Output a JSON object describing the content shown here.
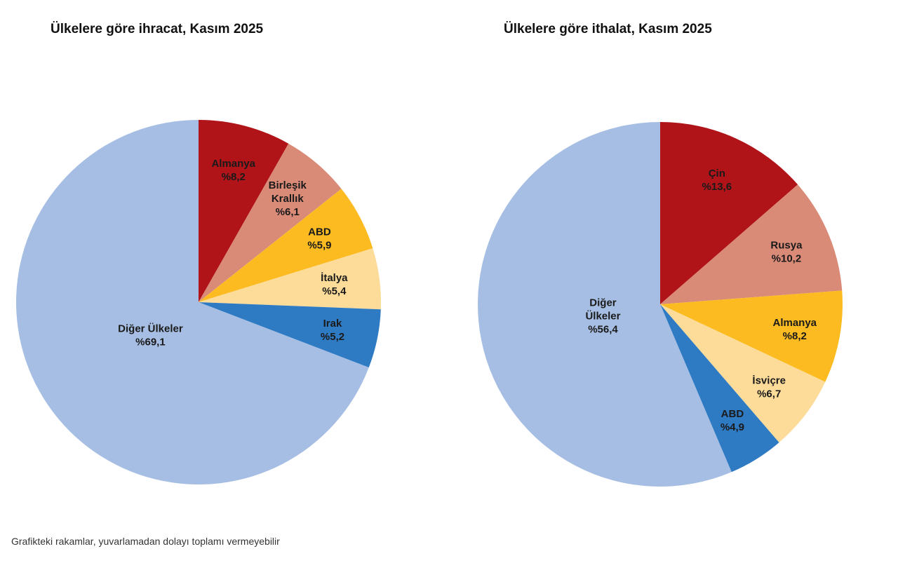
{
  "chart_data": [
    {
      "type": "pie",
      "title": "Ülkelere göre ihracat, Kasım 2025",
      "start": "12 o'clock, clockwise",
      "slices": [
        {
          "label": [
            "Almanya"
          ],
          "value": 8.2,
          "value_label": "%8,2",
          "color": "#B01419"
        },
        {
          "label": [
            "Birleşik",
            "Krallık"
          ],
          "value": 6.1,
          "value_label": "%6,1",
          "color": "#D98B78"
        },
        {
          "label": [
            "ABD"
          ],
          "value": 5.9,
          "value_label": "%5,9",
          "color": "#FBBB21"
        },
        {
          "label": [
            "İtalya"
          ],
          "value": 5.4,
          "value_label": "%5,4",
          "color": "#FDDC9A"
        },
        {
          "label": [
            "Irak"
          ],
          "value": 5.2,
          "value_label": "%5,2",
          "color": "#2E7BC4"
        },
        {
          "label": [
            "Diğer Ülkeler"
          ],
          "value": 69.1,
          "value_label": "%69,1",
          "color": "#A6BEE3"
        }
      ]
    },
    {
      "type": "pie",
      "title": "Ülkelere göre ithalat, Kasım 2025",
      "start": "12 o'clock, clockwise",
      "slices": [
        {
          "label": [
            "Çin"
          ],
          "value": 13.6,
          "value_label": "%13,6",
          "color": "#B01419"
        },
        {
          "label": [
            "Rusya"
          ],
          "value": 10.2,
          "value_label": "%10,2",
          "color": "#D98B78"
        },
        {
          "label": [
            "Almanya"
          ],
          "value": 8.2,
          "value_label": "%8,2",
          "color": "#FBBB21"
        },
        {
          "label": [
            "İsviçre"
          ],
          "value": 6.7,
          "value_label": "%6,7",
          "color": "#FDDC9A"
        },
        {
          "label": [
            "ABD"
          ],
          "value": 4.9,
          "value_label": "%4,9",
          "color": "#2E7BC4"
        },
        {
          "label": [
            "Diğer",
            "Ülkeler"
          ],
          "value": 56.4,
          "value_label": "%56,4",
          "color": "#A6BEE3"
        }
      ]
    }
  ],
  "footnote": "Grafikteki rakamlar, yuvarlamadan dolayı toplamı vermeyebilir"
}
